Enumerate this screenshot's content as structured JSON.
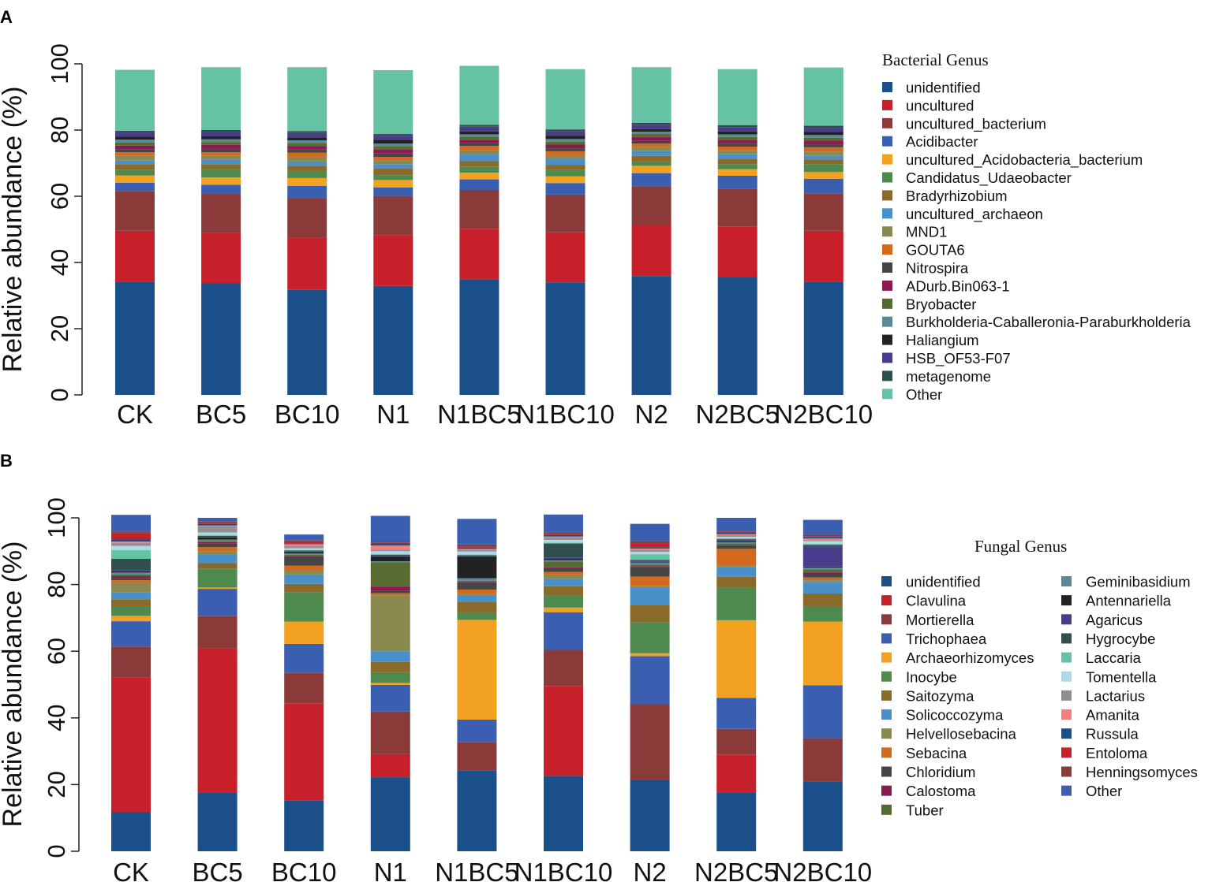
{
  "colors": {
    "unidentified": "#1b4f8a",
    "uncultured": "#c8202a",
    "uncultured_bacterium": "#8b3a3a",
    "Acidibacter": "#3a5fb0",
    "uncultured_Acidobacteria_bacterium": "#f2a220",
    "Candidatus_Udaeobacter": "#4e8a4e",
    "Bradyrhizobium": "#8a6a2a",
    "uncultured_archaeon": "#4a90c8",
    "MND1": "#8a8a50",
    "GOUTA6": "#d2691e",
    "Nitrospira": "#454545",
    "ADurb.Bin063-1": "#8b1a50",
    "Bryobacter": "#556b2f",
    "Burkholderia-Caballeronia-Paraburkholderia": "#5a8a96",
    "Haliangium": "#222222",
    "HSB_OF53-F07": "#483d8b",
    "metagenome": "#2f4f4f",
    "Other_A": "#66c2a5",
    "f_unidentified": "#1b4f8a",
    "Clavulina": "#c8202a",
    "Mortierella": "#8b3a3a",
    "Trichophaea": "#3a5fb0",
    "Archaeorhizomyces": "#f2a220",
    "Inocybe": "#4e8a4e",
    "Saitozyma": "#8a6a2a",
    "Solicoccozyma": "#4a90c8",
    "Helvellosebacina": "#8a8a50",
    "Sebacina": "#d2691e",
    "Chloridium": "#454545",
    "Calostoma": "#8b1a50",
    "Tuber": "#556b2f",
    "Geminibasidium": "#5a8a96",
    "Antennariella": "#222222",
    "Agaricus": "#483d8b",
    "Hygrocybe": "#2f4f4f",
    "Laccaria": "#66c2a5",
    "Tomentella": "#b0d8e8",
    "Lactarius": "#909090",
    "Amanita": "#f08080",
    "Russula": "#1b4f8a",
    "Entoloma": "#c8202a",
    "Henningsomyces": "#8b3a3a",
    "Other_B": "#3a5fb0"
  },
  "chart_data": [
    {
      "panel": "A",
      "type": "bar",
      "stacked": true,
      "title": "",
      "xlabel": "",
      "ylabel": "Relative abundance (%)",
      "ylim": [
        0,
        100
      ],
      "yticks": [
        0,
        20,
        40,
        60,
        80,
        100
      ],
      "legend_title": "Bacterial Genus",
      "legend_position": "right",
      "categories": [
        "CK",
        "BC5",
        "BC10",
        "N1",
        "N1BC5",
        "N1BC10",
        "N2",
        "N2BC5",
        "N2BC10"
      ],
      "series": [
        {
          "name": "unidentified",
          "color_key": "unidentified",
          "values": [
            34.2,
            33.8,
            31.7,
            32.9,
            34.9,
            34.0,
            35.9,
            35.6,
            34.2
          ]
        },
        {
          "name": "uncultured",
          "color_key": "uncultured",
          "values": [
            15.4,
            15.1,
            15.9,
            15.4,
            15.3,
            15.1,
            15.4,
            15.3,
            15.4
          ]
        },
        {
          "name": "uncultured_bacterium",
          "color_key": "uncultured_bacterium",
          "values": [
            12.0,
            11.8,
            11.9,
            11.8,
            11.7,
            11.4,
            11.7,
            11.4,
            11.3
          ]
        },
        {
          "name": "Acidibacter",
          "color_key": "Acidibacter",
          "values": [
            2.5,
            2.8,
            3.6,
            2.6,
            3.2,
            3.5,
            4.0,
            3.9,
            4.4
          ]
        },
        {
          "name": "uncultured_Acidobacteria_bacterium",
          "color_key": "uncultured_Acidobacteria_bacterium",
          "values": [
            2.2,
            2.2,
            2.4,
            2.2,
            2.0,
            2.0,
            2.2,
            2.0,
            2.0
          ]
        },
        {
          "name": "Candidatus_Udaeobacter",
          "color_key": "Candidatus_Udaeobacter",
          "values": [
            1.6,
            2.5,
            1.9,
            1.5,
            1.9,
            1.9,
            1.3,
            1.5,
            2.4
          ]
        },
        {
          "name": "Bradyrhizobium",
          "color_key": "Bradyrhizobium",
          "values": [
            1.8,
            1.5,
            1.8,
            2.1,
            1.6,
            1.5,
            1.7,
            1.5,
            1.4
          ]
        },
        {
          "name": "uncultured_archaeon",
          "color_key": "uncultured_archaeon",
          "values": [
            1.2,
            1.4,
            1.3,
            1.2,
            2.0,
            1.8,
            1.4,
            1.6,
            1.2
          ]
        },
        {
          "name": "MND1",
          "color_key": "MND1",
          "values": [
            1.3,
            1.1,
            1.4,
            1.1,
            1.3,
            1.2,
            1.3,
            1.1,
            1.2
          ]
        },
        {
          "name": "GOUTA6",
          "color_key": "GOUTA6",
          "values": [
            1.1,
            1.1,
            1.3,
            1.1,
            1.3,
            1.2,
            1.0,
            1.1,
            1.3
          ]
        },
        {
          "name": "Nitrospira",
          "color_key": "Nitrospira",
          "values": [
            0.9,
            1.0,
            0.9,
            1.0,
            0.9,
            0.9,
            0.8,
            0.9,
            0.9
          ]
        },
        {
          "name": "ADurb.Bin063-1",
          "color_key": "ADurb.Bin063-1",
          "values": [
            1.1,
            1.2,
            1.1,
            1.3,
            1.0,
            1.1,
            1.2,
            1.1,
            1.1
          ]
        },
        {
          "name": "Bryobacter",
          "color_key": "Bryobacter",
          "values": [
            0.9,
            0.9,
            0.9,
            0.9,
            0.9,
            0.9,
            0.9,
            0.9,
            0.9
          ]
        },
        {
          "name": "Burkholderia-Caballeronia-Paraburkholderia",
          "color_key": "Burkholderia-Caballeronia-Paraburkholderia",
          "values": [
            0.9,
            0.8,
            0.8,
            0.8,
            0.7,
            0.8,
            0.7,
            0.8,
            0.8
          ]
        },
        {
          "name": "Haliangium",
          "color_key": "Haliangium",
          "values": [
            0.9,
            0.9,
            0.9,
            1.2,
            0.9,
            1.0,
            0.8,
            0.9,
            0.9
          ]
        },
        {
          "name": "HSB_OF53-F07",
          "color_key": "HSB_OF53-F07",
          "values": [
            1.3,
            1.3,
            1.3,
            1.2,
            1.4,
            1.3,
            1.3,
            1.3,
            1.3
          ]
        },
        {
          "name": "metagenome",
          "color_key": "metagenome",
          "values": [
            0.5,
            0.6,
            0.6,
            0.5,
            0.6,
            0.6,
            0.6,
            0.6,
            0.6
          ]
        },
        {
          "name": "Other",
          "color_key": "Other_A",
          "values": [
            18.4,
            19.0,
            19.3,
            19.3,
            17.8,
            18.2,
            16.8,
            16.9,
            17.6
          ]
        }
      ]
    },
    {
      "panel": "B",
      "type": "bar",
      "stacked": true,
      "title": "",
      "xlabel": "",
      "ylabel": "Relative abundance (%)",
      "ylim": [
        0,
        100
      ],
      "yticks": [
        0,
        20,
        40,
        60,
        80,
        100
      ],
      "legend_title": "Fungal Genus",
      "legend_position": "right",
      "categories": [
        "CK",
        "BC5",
        "BC10",
        "N1",
        "N1BC5",
        "N1BC10",
        "N2",
        "N2BC5",
        "N2BC10"
      ],
      "series": [
        {
          "name": "unidentified",
          "color_key": "f_unidentified",
          "values": [
            11.7,
            17.6,
            15.3,
            22.2,
            24.2,
            22.6,
            21.4,
            17.5,
            20.9
          ]
        },
        {
          "name": "Clavulina",
          "color_key": "Clavulina",
          "values": [
            40.4,
            43.3,
            29.1,
            6.9,
            0.0,
            27.0,
            0.0,
            11.4,
            0.0
          ]
        },
        {
          "name": "Mortierella",
          "color_key": "Mortierella",
          "values": [
            9.3,
            9.6,
            9.1,
            12.8,
            8.6,
            10.8,
            22.8,
            7.8,
            13.0
          ]
        },
        {
          "name": "Trichophaea",
          "color_key": "Trichophaea",
          "values": [
            7.6,
            8.2,
            8.7,
            8.0,
            6.7,
            11.3,
            14.3,
            9.3,
            15.9
          ]
        },
        {
          "name": "Archaeorhizomyces",
          "color_key": "Archaeorhizomyces",
          "values": [
            1.6,
            0.4,
            6.7,
            0.6,
            29.9,
            1.4,
            0.9,
            23.3,
            19.1
          ]
        },
        {
          "name": "Inocybe",
          "color_key": "Inocybe",
          "values": [
            2.8,
            5.6,
            8.8,
            3.2,
            2.1,
            3.6,
            9.3,
            9.8,
            4.5
          ]
        },
        {
          "name": "Saitozyma",
          "color_key": "Saitozyma",
          "values": [
            2.2,
            1.7,
            2.5,
            3.1,
            3.2,
            2.8,
            5.2,
            3.2,
            3.9
          ]
        },
        {
          "name": "Solicoccozyma",
          "color_key": "Solicoccozyma",
          "values": [
            2.1,
            2.6,
            2.8,
            3.2,
            2.0,
            2.2,
            5.2,
            3.0,
            3.5
          ]
        },
        {
          "name": "Helvellosebacina",
          "color_key": "Helvellosebacina",
          "values": [
            2.9,
            0.9,
            1.4,
            16.8,
            0.5,
            1.3,
            0.5,
            0.5,
            0.5
          ]
        },
        {
          "name": "Sebacina",
          "color_key": "Sebacina",
          "values": [
            0.7,
            1.3,
            1.3,
            0.6,
            1.3,
            0.8,
            2.8,
            4.9,
            0.8
          ]
        },
        {
          "name": "Chloridium",
          "color_key": "Chloridium",
          "values": [
            0.7,
            1.2,
            2.6,
            0.7,
            2.1,
            1.1,
            2.9,
            1.0,
            1.4
          ]
        },
        {
          "name": "Calostoma",
          "color_key": "Calostoma",
          "values": [
            0.5,
            0.3,
            0.2,
            1.3,
            0.2,
            0.2,
            0.2,
            0.2,
            0.2
          ]
        },
        {
          "name": "Tuber",
          "color_key": "Tuber",
          "values": [
            0.5,
            0.4,
            0.4,
            7.3,
            0.3,
            1.8,
            0.5,
            0.3,
            0.8
          ]
        },
        {
          "name": "Geminibasidium",
          "color_key": "Geminibasidium",
          "values": [
            0.6,
            0.4,
            0.4,
            0.3,
            0.8,
            0.4,
            0.6,
            0.5,
            0.6
          ]
        },
        {
          "name": "Antennariella",
          "color_key": "Antennariella",
          "values": [
            0.4,
            0.6,
            0.5,
            1.3,
            6.4,
            0.4,
            0.2,
            0.3,
            0.3
          ]
        },
        {
          "name": "Agaricus",
          "color_key": "Agaricus",
          "values": [
            0.3,
            0.2,
            0.2,
            0.3,
            0.2,
            0.3,
            0.3,
            0.3,
            6.0
          ]
        },
        {
          "name": "Hygrocybe",
          "color_key": "Hygrocybe",
          "values": [
            3.4,
            0.3,
            0.2,
            0.3,
            0.3,
            4.3,
            0.3,
            0.3,
            0.5
          ]
        },
        {
          "name": "Laccaria",
          "color_key": "Laccaria",
          "values": [
            2.6,
            0.3,
            0.2,
            0.3,
            0.2,
            0.3,
            1.7,
            0.3,
            0.3
          ]
        },
        {
          "name": "Tomentella",
          "color_key": "Tomentella",
          "values": [
            1.3,
            0.7,
            0.5,
            0.8,
            0.9,
            0.8,
            0.7,
            0.4,
            0.8
          ]
        },
        {
          "name": "Lactarius",
          "color_key": "Lactarius",
          "values": [
            0.9,
            1.9,
            0.6,
            0.5,
            0.6,
            0.7,
            0.7,
            0.5,
            0.3
          ]
        },
        {
          "name": "Amanita",
          "color_key": "Amanita",
          "values": [
            0.4,
            0.2,
            0.6,
            1.2,
            0.2,
            0.3,
            0.3,
            0.3,
            0.5
          ]
        },
        {
          "name": "Russula",
          "color_key": "Russula",
          "values": [
            0.6,
            0.5,
            0.3,
            0.5,
            0.4,
            0.5,
            0.4,
            0.4,
            0.3
          ]
        },
        {
          "name": "Entoloma",
          "color_key": "Entoloma",
          "values": [
            1.8,
            0.3,
            0.3,
            0.3,
            0.3,
            0.3,
            1.1,
            0.3,
            0.3
          ]
        },
        {
          "name": "Henningsomyces",
          "color_key": "Henningsomyces",
          "values": [
            0.6,
            0.5,
            0.5,
            0.4,
            0.6,
            0.4,
            0.7,
            0.4,
            0.5
          ]
        },
        {
          "name": "Other",
          "color_key": "Other_B",
          "values": [
            5.0,
            1.0,
            1.8,
            7.7,
            7.7,
            5.4,
            5.2,
            3.8,
            4.5
          ]
        }
      ]
    }
  ]
}
